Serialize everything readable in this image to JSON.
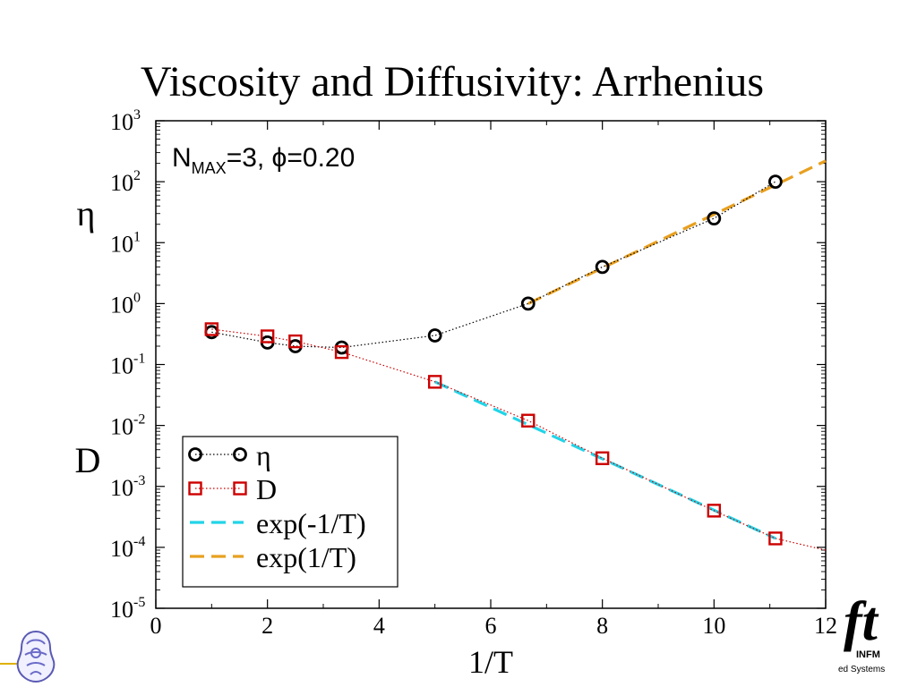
{
  "slide": {
    "title": "Viscosity and Diffusivity: Arrhenius",
    "eta_side_label": "η",
    "d_side_label": "D"
  },
  "logos": {
    "right_mark": "ft",
    "right_org": "INFM",
    "right_caption": "ed Systems",
    "left_icon": "crest-emblem-icon"
  },
  "chart_data": {
    "type": "scatter",
    "xlabel": "1/T",
    "ylabel": "",
    "xlim": [
      0,
      12
    ],
    "ylim": [
      1e-05,
      1000
    ],
    "y_scale": "log",
    "x_ticks": [
      0,
      2,
      4,
      6,
      8,
      10,
      12
    ],
    "x_tick_labels": [
      "0",
      "2",
      "4",
      "6",
      "8",
      "10",
      "12"
    ],
    "y_ticks": [
      {
        "value": 1e-05,
        "base": "10",
        "exp": "-5"
      },
      {
        "value": 0.0001,
        "base": "10",
        "exp": "-4"
      },
      {
        "value": 0.001,
        "base": "10",
        "exp": "-3"
      },
      {
        "value": 0.01,
        "base": "10",
        "exp": "-2"
      },
      {
        "value": 0.1,
        "base": "10",
        "exp": "-1"
      },
      {
        "value": 1,
        "base": "10",
        "exp": "0"
      },
      {
        "value": 10,
        "base": "10",
        "exp": "1"
      },
      {
        "value": 100,
        "base": "10",
        "exp": "2"
      },
      {
        "value": 1000,
        "base": "10",
        "exp": "3"
      }
    ],
    "annotation": {
      "n_text": "N",
      "subscript": "MAX",
      "rest": "=3, ϕ=0.20"
    },
    "legend_position": "bottom-left",
    "series": [
      {
        "name": "η",
        "marker": "circle",
        "color": "#000000",
        "line": "dotted",
        "x": [
          1,
          2,
          2.5,
          3.33,
          5,
          6.67,
          8,
          10,
          11.1
        ],
        "y": [
          0.34,
          0.23,
          0.2,
          0.19,
          0.3,
          1.0,
          4.0,
          25,
          100
        ]
      },
      {
        "name": "D",
        "marker": "square",
        "color": "#cc0000",
        "line": "dotted",
        "x": [
          1,
          2,
          2.5,
          3.33,
          5,
          6.67,
          8,
          10,
          11.1
        ],
        "y": [
          0.38,
          0.29,
          0.24,
          0.16,
          0.052,
          0.012,
          0.0029,
          0.0004,
          0.00014
        ]
      },
      {
        "name": "exp(-1/T)",
        "marker": "none",
        "color": "#22d4e8",
        "line": "dashed",
        "x": [
          5,
          11.1
        ],
        "y": [
          0.052,
          0.00014
        ]
      },
      {
        "name": "exp(1/T)",
        "marker": "none",
        "color": "#e8a020",
        "line": "dashed",
        "x": [
          6.67,
          12
        ],
        "y": [
          1.0,
          220
        ]
      }
    ],
    "dotted_extension": {
      "series": "D",
      "x": [
        11.1,
        12
      ],
      "y": [
        0.00014,
        9e-05
      ]
    }
  }
}
